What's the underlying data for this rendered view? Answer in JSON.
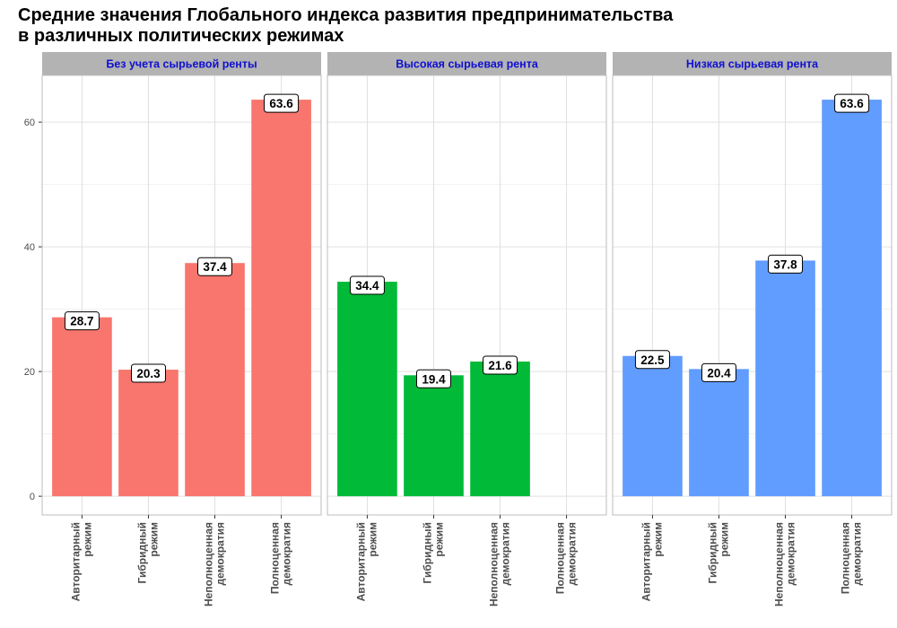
{
  "chart_data": {
    "type": "bar",
    "title_lines": [
      "Средние значения Глобального индекса развития предпринимательства",
      "в различных политических режимах"
    ],
    "xlabel": "",
    "ylabel": "",
    "ylim": [
      -3,
      67.5
    ],
    "yticks": [
      0,
      20,
      40,
      60
    ],
    "grid": true,
    "legend": "none",
    "categories": [
      [
        "Авторитарный",
        "режим"
      ],
      [
        "Гибридный",
        "режим"
      ],
      [
        "Неполноценная",
        "демократия"
      ],
      [
        "Полноценная",
        "демократия"
      ]
    ],
    "panels": [
      {
        "label": "Без учета сырьевой ренты",
        "color": "#F8766D",
        "values": [
          28.7,
          20.3,
          37.4,
          63.6
        ],
        "labels": [
          "28.7",
          "20.3",
          "37.4",
          "63.6"
        ]
      },
      {
        "label": "Высокая сырьевая рента",
        "color": "#00BA38",
        "values": [
          34.4,
          19.4,
          21.6,
          null
        ],
        "labels": [
          "34.4",
          "19.4",
          "21.6",
          ""
        ]
      },
      {
        "label": "Низкая сырьевая рента",
        "color": "#619CFF",
        "values": [
          22.5,
          20.4,
          37.8,
          63.6
        ],
        "labels": [
          "22.5",
          "20.4",
          "37.8",
          "63.6"
        ]
      }
    ],
    "strip_color": "#B3B3B3",
    "strip_text_color": "#1010D0",
    "grid_color": "#E0E0E0",
    "panel_border_color": "#BDBDBD",
    "axis_text_color": "#4D4D4D"
  }
}
